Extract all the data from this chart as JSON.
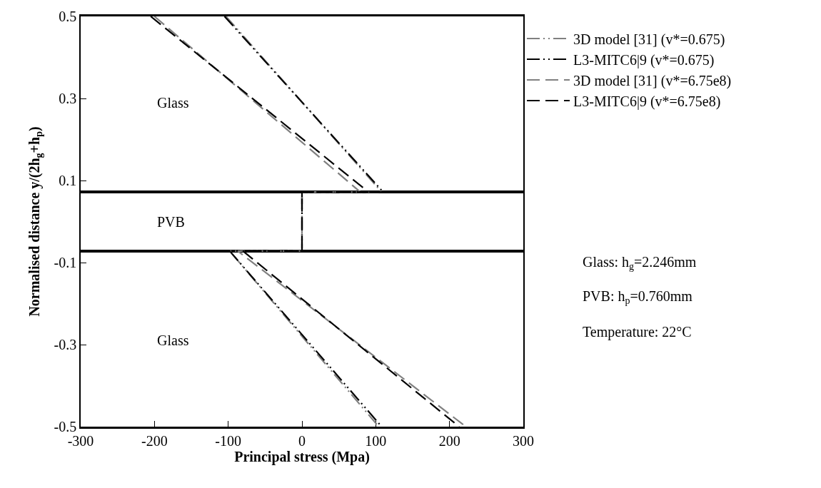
{
  "chart_data": {
    "type": "line",
    "xlabel": "Principal stress (Mpa)",
    "ylabel": "Normalised distance y/(2h$_{g}$+h$_{p}$)",
    "xlim": [
      -300,
      300
    ],
    "xticks": [
      -300,
      -200,
      -100,
      0,
      100,
      200,
      300
    ],
    "ylim": [
      -0.5,
      0.5
    ],
    "yticks": [
      -0.5,
      -0.3,
      -0.1,
      0.1,
      0.3,
      0.5
    ],
    "grid": false,
    "legend": "top right",
    "marker": "none",
    "series": [
      {
        "name": "3D model [31] (v*=0.675)",
        "color": "#808080",
        "line_style": "dashdot",
        "x": [
          -103,
          108,
          0,
          0,
          -98,
          104
        ],
        "values": [
          0.5,
          0.072,
          0.072,
          -0.072,
          -0.072,
          -0.5
        ]
      },
      {
        "name": "L3-MITC6|9 (v*=0.675)",
        "color": "#000000",
        "line_style": "dashdot",
        "x": [
          -105,
          110,
          0,
          0,
          -98,
          108
        ],
        "values": [
          0.5,
          0.072,
          0.072,
          -0.072,
          -0.072,
          -0.5
        ]
      },
      {
        "name": "3D model [31] (v*=6.75e8)",
        "color": "#808080",
        "line_style": "dashed",
        "x": [
          -200,
          79,
          0,
          0,
          -87,
          222
        ],
        "values": [
          0.5,
          0.072,
          0.072,
          -0.072,
          -0.072,
          -0.5
        ]
      },
      {
        "name": "L3-MITC6|9 (v*=6.75e8)",
        "color": "#000000",
        "line_style": "dashed",
        "x": [
          -205,
          90,
          0,
          0,
          -80,
          213
        ],
        "values": [
          0.5,
          0.072,
          0.072,
          -0.072,
          -0.072,
          -0.5
        ]
      }
    ],
    "ref_lines": [
      {
        "axis": "y",
        "value": 0.072,
        "color": "#000000"
      },
      {
        "axis": "y",
        "value": -0.072,
        "color": "#000000"
      }
    ],
    "annotations": [
      "Glass",
      "PVB",
      "Glass",
      "Glass: h$_{g}$=2.246mm",
      "PVB: h$_{p}$=0.760mm",
      "Temperature: 22°C"
    ]
  }
}
